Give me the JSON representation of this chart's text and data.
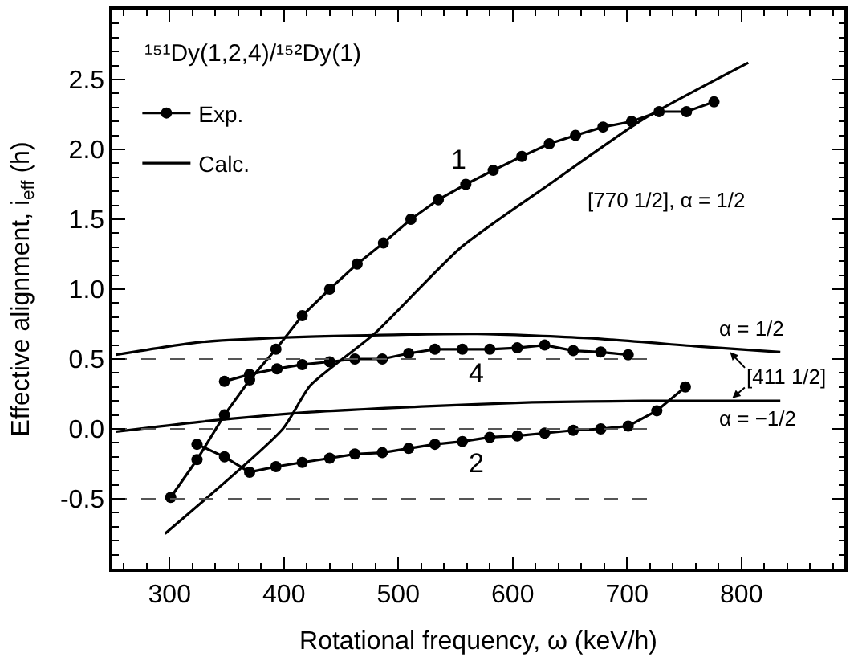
{
  "chart_data": {
    "type": "line",
    "title": "¹⁵¹Dy(1,2,4)/¹⁵²Dy(1)",
    "xlabel": "Rotational frequency, ω (keV/h)",
    "ylabel": "Effective alignment, i$_{eff}$ (h)",
    "xlim": [
      250,
      890
    ],
    "ylim": [
      -1.0,
      3.0
    ],
    "xticks": [
      300,
      400,
      500,
      600,
      700,
      800
    ],
    "yticks": [
      -0.5,
      {
        "value": 0,
        "label": "0.0"
      },
      0.5,
      {
        "value": 1,
        "label": "1.0"
      },
      1.5,
      {
        "value": 2,
        "label": "2.0"
      },
      2.5
    ],
    "legend": "top left",
    "series": [
      {
        "name": "Exp.",
        "color": "#000000",
        "marker": "circle",
        "line_style": "solid",
        "x": [
          301,
          324,
          348,
          370,
          393,
          416,
          440,
          464,
          487,
          511,
          535,
          559,
          583,
          608,
          632,
          655,
          679,
          704,
          728,
          752,
          776
        ],
        "values": [
          -0.49,
          -0.22,
          0.1,
          0.35,
          0.57,
          0.81,
          1.0,
          1.18,
          1.33,
          1.5,
          1.64,
          1.75,
          1.85,
          1.95,
          2.04,
          2.1,
          2.16,
          2.2,
          2.27,
          2.27,
          2.34
        ]
      },
      {
        "color": "#000000",
        "marker": "circle",
        "line_style": "solid",
        "x": [
          348,
          370,
          394,
          416,
          440,
          462,
          486,
          509,
          532,
          556,
          580,
          604,
          628,
          653,
          677,
          701
        ],
        "values": [
          0.34,
          0.39,
          0.43,
          0.46,
          0.48,
          0.5,
          0.5,
          0.54,
          0.57,
          0.57,
          0.57,
          0.58,
          0.6,
          0.56,
          0.55,
          0.53
        ]
      },
      {
        "color": "#000000",
        "marker": "circle",
        "line_style": "solid",
        "x": [
          324,
          348,
          370,
          393,
          416,
          440,
          462,
          486,
          509,
          532,
          556,
          580,
          604,
          628,
          653,
          677,
          701,
          726,
          751
        ],
        "values": [
          -0.11,
          -0.2,
          -0.31,
          -0.27,
          -0.24,
          -0.21,
          -0.18,
          -0.17,
          -0.14,
          -0.11,
          -0.09,
          -0.06,
          -0.05,
          -0.03,
          -0.01,
          0.0,
          0.02,
          0.13,
          0.3
        ]
      },
      {
        "name": "Calc.",
        "color": "#000000",
        "marker": "none",
        "line_style": "solid",
        "x": [
          296,
          399,
          423,
          479,
          555,
          632,
          715,
          806
        ],
        "values": [
          -0.75,
          0.0,
          0.31,
          0.68,
          1.3,
          1.75,
          2.22,
          2.62
        ]
      },
      {
        "color": "#000000",
        "marker": "none",
        "line_style": "solid",
        "x": [
          253,
          326,
          423,
          569,
          666,
          763,
          834
        ],
        "values": [
          0.53,
          0.62,
          0.66,
          0.68,
          0.65,
          0.59,
          0.55
        ]
      },
      {
        "color": "#000000",
        "marker": "none",
        "line_style": "solid",
        "x": [
          253,
          326,
          423,
          520,
          617,
          714,
          834
        ],
        "values": [
          -0.02,
          0.05,
          0.12,
          0.16,
          0.19,
          0.2,
          0.2
        ]
      },
      {
        "color": "#555555",
        "marker": "none",
        "line_style": "dashed",
        "x": [
          250,
          720
        ],
        "values": [
          0.5,
          0.5
        ]
      },
      {
        "color": "#555555",
        "marker": "none",
        "line_style": "dashed",
        "x": [
          250,
          720
        ],
        "values": [
          0.0,
          0.0
        ]
      },
      {
        "color": "#555555",
        "marker": "none",
        "line_style": "dashed",
        "x": [
          250,
          720
        ],
        "values": [
          -0.5,
          -0.5
        ]
      }
    ],
    "annotations": [
      "1",
      "4",
      "2",
      "[770 1/2], α = 1/2",
      "α = 1/2",
      "α = −1/2",
      "[411 1/2]"
    ]
  }
}
